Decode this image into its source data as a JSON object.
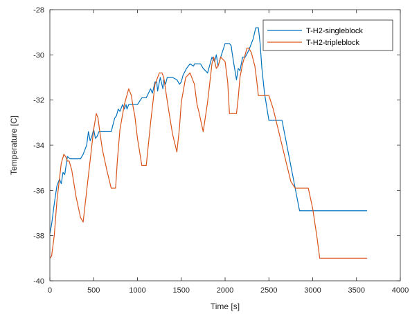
{
  "chart_data": {
    "type": "line",
    "title": "",
    "xlabel": "Time [s]",
    "ylabel": "Temperature [C]",
    "xlim": [
      0,
      4000
    ],
    "ylim": [
      -40,
      -28
    ],
    "xticks": [
      0,
      500,
      1000,
      1500,
      2000,
      2500,
      3000,
      3500,
      4000
    ],
    "yticks": [
      -40,
      -38,
      -36,
      -34,
      -32,
      -30,
      -28
    ],
    "xtick_labels": [
      "0",
      "500",
      "1000",
      "1500",
      "2000",
      "2500",
      "3000",
      "3500",
      "4000"
    ],
    "ytick_labels": [
      "-40",
      "-38",
      "-36",
      "-34",
      "-32",
      "-30",
      "-28"
    ],
    "grid": false,
    "legend_position": "top-right",
    "series": [
      {
        "name": "T-H2-singleblock",
        "color": "#0072BD",
        "x": [
          0,
          20,
          50,
          80,
          110,
          130,
          150,
          170,
          200,
          230,
          260,
          300,
          350,
          380,
          400,
          420,
          440,
          460,
          480,
          500,
          520,
          540,
          560,
          580,
          600,
          650,
          700,
          740,
          760,
          780,
          800,
          830,
          850,
          870,
          880,
          900,
          950,
          1000,
          1050,
          1100,
          1150,
          1170,
          1200,
          1220,
          1230,
          1260,
          1290,
          1300,
          1320,
          1340,
          1400,
          1450,
          1480,
          1500,
          1520,
          1560,
          1600,
          1640,
          1650,
          1700,
          1720,
          1750,
          1800,
          1850,
          1880,
          1900,
          1920,
          1950,
          2000,
          2050,
          2070,
          2080,
          2100,
          2130,
          2150,
          2170,
          2200,
          2230,
          2270,
          2300,
          2320,
          2350,
          2380,
          2400,
          2420,
          2450,
          2500,
          2550,
          2600,
          2650,
          2700,
          2750,
          2800,
          2850,
          2900,
          2950,
          3000,
          3200,
          3400,
          3620
        ],
        "y": [
          -37.9,
          -37.5,
          -36.6,
          -35.8,
          -35.5,
          -35.7,
          -35.2,
          -35.3,
          -34.5,
          -34.6,
          -34.6,
          -34.6,
          -34.6,
          -34.4,
          -34.2,
          -34.0,
          -33.4,
          -33.8,
          -33.6,
          -33.3,
          -33.7,
          -33.6,
          -33.4,
          -33.4,
          -33.4,
          -33.4,
          -33.4,
          -32.8,
          -32.7,
          -32.4,
          -32.5,
          -32.2,
          -32.4,
          -32.2,
          -32.4,
          -32.2,
          -32.2,
          -32.2,
          -31.9,
          -31.9,
          -31.5,
          -31.7,
          -31.2,
          -31.2,
          -31.6,
          -31.0,
          -31.5,
          -31.1,
          -31.3,
          -31.0,
          -31.0,
          -31.1,
          -31.3,
          -31.2,
          -30.9,
          -30.6,
          -30.4,
          -30.5,
          -30.4,
          -30.4,
          -30.4,
          -30.6,
          -30.8,
          -30.1,
          -30.3,
          -30.0,
          -30.5,
          -30.1,
          -29.5,
          -29.5,
          -29.6,
          -29.9,
          -30.4,
          -31.1,
          -30.6,
          -30.7,
          -30.1,
          -30.1,
          -29.8,
          -29.5,
          -29.3,
          -28.8,
          -28.8,
          -29.5,
          -30.6,
          -31.7,
          -32.9,
          -32.9,
          -32.9,
          -32.9,
          -33.9,
          -34.9,
          -35.9,
          -36.9,
          -36.9,
          -36.9,
          -36.9,
          -36.9,
          -36.9,
          -36.9
        ]
      },
      {
        "name": "T-H2-tripleblock",
        "color": "#D95319",
        "x": [
          0,
          20,
          50,
          80,
          100,
          130,
          160,
          180,
          200,
          220,
          250,
          300,
          350,
          380,
          400,
          450,
          500,
          530,
          550,
          570,
          600,
          650,
          700,
          750,
          770,
          800,
          850,
          900,
          930,
          950,
          970,
          1000,
          1050,
          1100,
          1150,
          1200,
          1250,
          1280,
          1300,
          1350,
          1400,
          1450,
          1480,
          1500,
          1550,
          1600,
          1650,
          1680,
          1700,
          1750,
          1800,
          1850,
          1870,
          1900,
          1920,
          1950,
          2000,
          2030,
          2050,
          2100,
          2130,
          2150,
          2170,
          2200,
          2250,
          2270,
          2300,
          2320,
          2340,
          2360,
          2380,
          2400,
          2450,
          2500,
          2550,
          2600,
          2650,
          2700,
          2750,
          2800,
          2850,
          2900,
          2950,
          3000,
          3050,
          3080,
          3200,
          3400,
          3620
        ],
        "y": [
          -39.0,
          -38.9,
          -38.0,
          -36.5,
          -35.8,
          -34.8,
          -34.4,
          -34.5,
          -34.7,
          -34.7,
          -35.1,
          -36.3,
          -37.2,
          -37.4,
          -36.7,
          -35.0,
          -33.3,
          -32.6,
          -32.8,
          -33.4,
          -34.2,
          -35.1,
          -35.9,
          -35.9,
          -34.7,
          -33.3,
          -32.2,
          -31.5,
          -31.8,
          -32.3,
          -32.7,
          -33.7,
          -34.9,
          -34.9,
          -33.0,
          -31.3,
          -30.8,
          -30.8,
          -31.0,
          -32.3,
          -33.5,
          -34.3,
          -33.2,
          -32.1,
          -31.0,
          -30.8,
          -31.3,
          -32.2,
          -32.5,
          -33.4,
          -32.1,
          -30.4,
          -30.1,
          -30.6,
          -30.5,
          -30.1,
          -30.3,
          -31.2,
          -32.6,
          -32.6,
          -32.6,
          -31.9,
          -31.0,
          -30.4,
          -29.7,
          -29.7,
          -29.9,
          -30.2,
          -30.5,
          -31.1,
          -31.8,
          -31.8,
          -31.8,
          -31.8,
          -32.4,
          -33.2,
          -34.0,
          -34.8,
          -35.6,
          -35.9,
          -35.9,
          -35.9,
          -35.9,
          -36.8,
          -38.1,
          -39.0,
          -39.0,
          -39.0,
          -39.0
        ]
      }
    ]
  }
}
